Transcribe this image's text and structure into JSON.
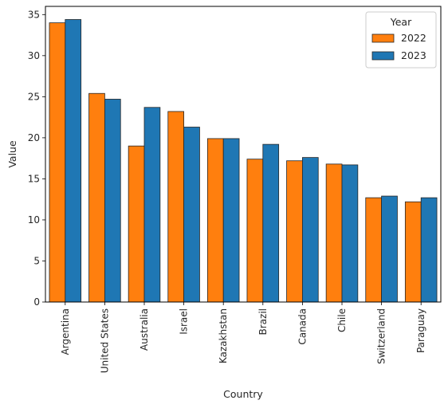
{
  "chart_data": {
    "type": "bar",
    "title": "",
    "xlabel": "Country",
    "ylabel": "Value",
    "ylim": [
      0,
      36
    ],
    "yticks": [
      0,
      5,
      10,
      15,
      20,
      25,
      30,
      35
    ],
    "grid": false,
    "legend": {
      "title": "Year",
      "placement": "top-right"
    },
    "categories": [
      "Argentina",
      "United States",
      "Australia",
      "Israel",
      "Kazakhstan",
      "Brazil",
      "Canada",
      "Chile",
      "Switzerland",
      "Paraguay"
    ],
    "series": [
      {
        "name": "2022",
        "color": "#ff7f0e",
        "values": [
          34.0,
          25.4,
          19.0,
          23.2,
          19.9,
          17.4,
          17.2,
          16.8,
          12.7,
          12.2
        ]
      },
      {
        "name": "2023",
        "color": "#1f77b4",
        "values": [
          34.4,
          24.7,
          23.7,
          21.3,
          19.9,
          19.2,
          17.6,
          16.7,
          12.9,
          12.7
        ]
      }
    ]
  }
}
